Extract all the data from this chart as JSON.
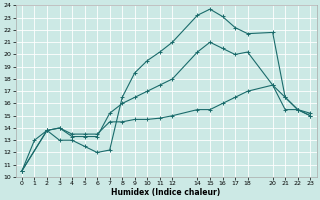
{
  "xlabel": "Humidex (Indice chaleur)",
  "xlim": [
    -0.5,
    23.5
  ],
  "ylim": [
    10,
    24
  ],
  "xticks": [
    0,
    1,
    2,
    3,
    4,
    5,
    6,
    7,
    8,
    9,
    10,
    11,
    12,
    14,
    15,
    16,
    17,
    18,
    20,
    21,
    22,
    23
  ],
  "yticks": [
    10,
    11,
    12,
    13,
    14,
    15,
    16,
    17,
    18,
    19,
    20,
    21,
    22,
    23,
    24
  ],
  "background_color": "#cce9e5",
  "grid_color": "#ffffff",
  "line_color": "#1a6b6b",
  "line1_x": [
    0,
    1,
    2,
    3,
    4,
    5,
    6,
    7,
    8,
    9,
    10,
    11,
    12,
    14,
    15,
    16,
    17,
    18,
    20,
    21,
    22,
    23
  ],
  "line1_y": [
    10.5,
    13.0,
    13.8,
    13.0,
    13.0,
    12.5,
    12.0,
    12.2,
    16.5,
    18.5,
    19.5,
    20.2,
    21.0,
    23.2,
    23.7,
    23.1,
    22.2,
    21.7,
    21.8,
    16.5,
    15.5,
    15.0
  ],
  "line2_x": [
    0,
    2,
    3,
    4,
    5,
    6,
    7,
    8,
    9,
    10,
    11,
    12,
    14,
    15,
    16,
    17,
    18,
    20,
    21,
    22,
    23
  ],
  "line2_y": [
    10.5,
    13.8,
    14.0,
    13.3,
    13.3,
    13.3,
    15.2,
    16.0,
    16.5,
    17.0,
    17.5,
    18.0,
    20.2,
    21.0,
    20.5,
    20.0,
    20.2,
    17.5,
    16.5,
    15.5,
    15.0
  ],
  "line3_x": [
    0,
    2,
    3,
    4,
    5,
    6,
    7,
    8,
    9,
    10,
    11,
    12,
    14,
    15,
    16,
    17,
    18,
    20,
    21,
    22,
    23
  ],
  "line3_y": [
    10.5,
    13.8,
    14.0,
    13.5,
    13.5,
    13.5,
    14.5,
    14.5,
    14.7,
    14.7,
    14.8,
    15.0,
    15.5,
    15.5,
    16.0,
    16.5,
    17.0,
    17.5,
    15.5,
    15.5,
    15.2
  ]
}
